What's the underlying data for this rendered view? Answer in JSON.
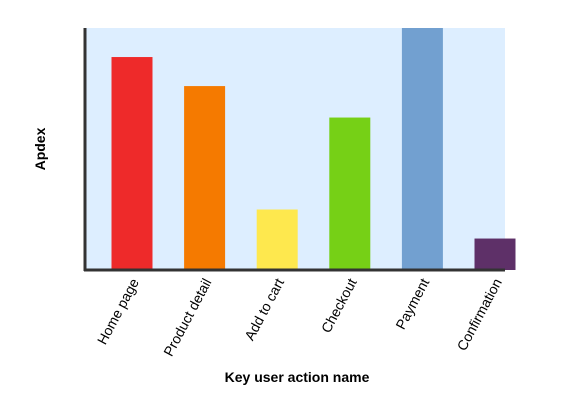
{
  "chart_data": {
    "type": "bar",
    "x_label": "Key user action name",
    "y_label": "Apdex",
    "categories": [
      "Home page",
      "Product detail",
      "Add to cart",
      "Checkout",
      "Payment",
      "Confirmation"
    ],
    "values": [
      0.88,
      0.76,
      0.25,
      0.63,
      1.0,
      0.13
    ],
    "colors": [
      "#ee2a2a",
      "#f57a00",
      "#fee84e",
      "#76d016",
      "#72a0d0",
      "#5e3068"
    ],
    "ylim": [
      0,
      1
    ]
  }
}
